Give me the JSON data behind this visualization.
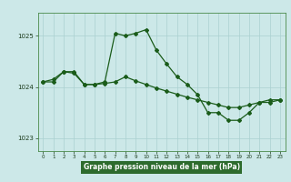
{
  "x": [
    0,
    1,
    2,
    3,
    4,
    5,
    6,
    7,
    8,
    9,
    10,
    11,
    12,
    13,
    14,
    15,
    16,
    17,
    18,
    19,
    20,
    21,
    22,
    23
  ],
  "series_a": [
    1024.1,
    1024.1,
    1024.3,
    1024.3,
    1024.05,
    1024.05,
    1024.1,
    1025.05,
    1025.0,
    1025.05,
    1025.12,
    1024.72,
    1024.45,
    1024.2,
    1024.05,
    1023.85,
    1023.5,
    1023.5,
    1023.35,
    1023.35,
    1023.5,
    1023.7,
    1023.75,
    1023.75
  ],
  "series_b": [
    1024.1,
    1024.15,
    1024.3,
    1024.27,
    1024.05,
    1024.05,
    1024.07,
    1024.1,
    1024.2,
    1024.12,
    1024.05,
    1023.98,
    1023.92,
    1023.86,
    1023.8,
    1023.75,
    1023.7,
    1023.65,
    1023.6,
    1023.6,
    1023.65,
    1023.7,
    1023.7,
    1023.75
  ],
  "ylim_min": 1022.75,
  "ylim_max": 1025.45,
  "yticks": [
    1023,
    1024,
    1025
  ],
  "xtick_labels": [
    "0",
    "1",
    "2",
    "3",
    "4",
    "5",
    "6",
    "7",
    "8",
    "9",
    "10",
    "11",
    "12",
    "13",
    "14",
    "15",
    "16",
    "17",
    "18",
    "19",
    "20",
    "21",
    "22",
    "23"
  ],
  "xlabel": "Graphe pression niveau de la mer (hPa)",
  "bg_color": "#cce8e8",
  "line_color": "#1a5c1a",
  "grid_color": "#aad0d0",
  "label_bg": "#2d6b2d",
  "label_fg": "#ffffff"
}
